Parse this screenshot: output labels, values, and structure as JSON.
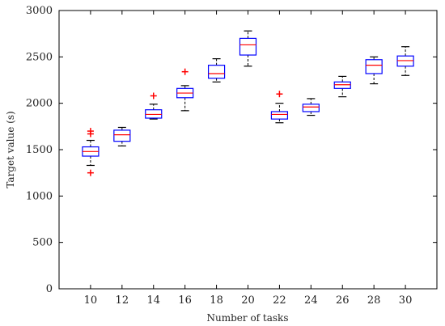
{
  "chart_data": {
    "type": "box",
    "title": "",
    "xlabel": "Number of tasks",
    "ylabel": "Target value (s)",
    "categories": [
      "10",
      "12",
      "14",
      "16",
      "18",
      "20",
      "22",
      "24",
      "26",
      "28",
      "30"
    ],
    "ylim": [
      0,
      3000
    ],
    "yticks": [
      "0",
      "500",
      "1000",
      "1500",
      "2000",
      "2500",
      "3000"
    ],
    "grid": false,
    "legend": "none",
    "colors": {
      "box": "#0000ff",
      "median": "#ff0000",
      "whisker": "#000000",
      "outlier": "#ff0000"
    },
    "boxes": [
      {
        "category": "10",
        "min": 1330,
        "q1": 1430,
        "median": 1480,
        "q3": 1530,
        "max": 1600,
        "outliers": [
          1250,
          1700,
          1670
        ]
      },
      {
        "category": "12",
        "min": 1540,
        "q1": 1590,
        "median": 1660,
        "q3": 1710,
        "max": 1740,
        "outliers": []
      },
      {
        "category": "14",
        "min": 1830,
        "q1": 1840,
        "median": 1880,
        "q3": 1930,
        "max": 1990,
        "outliers": [
          2080
        ]
      },
      {
        "category": "16",
        "min": 1920,
        "q1": 2060,
        "median": 2110,
        "q3": 2160,
        "max": 2190,
        "outliers": [
          2340
        ]
      },
      {
        "category": "18",
        "min": 2230,
        "q1": 2270,
        "median": 2320,
        "q3": 2410,
        "max": 2480,
        "outliers": []
      },
      {
        "category": "20",
        "min": 2400,
        "q1": 2520,
        "median": 2630,
        "q3": 2700,
        "max": 2780,
        "outliers": []
      },
      {
        "category": "22",
        "min": 1790,
        "q1": 1830,
        "median": 1880,
        "q3": 1910,
        "max": 2000,
        "outliers": [
          2100
        ]
      },
      {
        "category": "24",
        "min": 1870,
        "q1": 1910,
        "median": 1960,
        "q3": 1990,
        "max": 2050,
        "outliers": []
      },
      {
        "category": "26",
        "min": 2070,
        "q1": 2160,
        "median": 2200,
        "q3": 2230,
        "max": 2290,
        "outliers": []
      },
      {
        "category": "28",
        "min": 2210,
        "q1": 2320,
        "median": 2410,
        "q3": 2470,
        "max": 2500,
        "outliers": []
      },
      {
        "category": "30",
        "min": 2300,
        "q1": 2400,
        "median": 2460,
        "q3": 2510,
        "max": 2610,
        "outliers": []
      }
    ]
  }
}
